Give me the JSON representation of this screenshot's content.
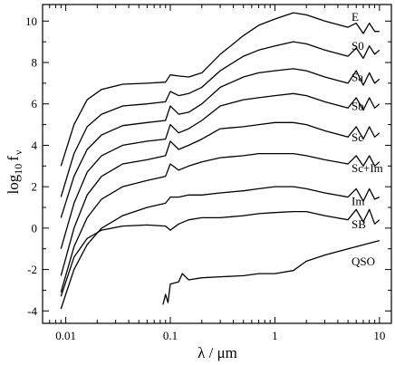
{
  "chart_data": {
    "type": "line",
    "xlabel": "λ / μm",
    "ylabel": "log",
    "ylabel_sub": "10",
    "ylabel_tail": "f",
    "ylabel_tail_sub": "ν",
    "x_scale": "log",
    "xlim": [
      0.006,
      13
    ],
    "ylim": [
      -4.6,
      10.8
    ],
    "x_ticks": [
      {
        "value": 0.01,
        "label": "0.01"
      },
      {
        "value": 0.1,
        "label": "0.1"
      },
      {
        "value": 1,
        "label": "1"
      },
      {
        "value": 10,
        "label": "10"
      }
    ],
    "y_ticks": [
      {
        "value": -4,
        "label": "-4"
      },
      {
        "value": -2,
        "label": "-2"
      },
      {
        "value": 0,
        "label": "0"
      },
      {
        "value": 2,
        "label": "2"
      },
      {
        "value": 4,
        "label": "4"
      },
      {
        "value": 6,
        "label": "6"
      },
      {
        "value": 8,
        "label": "8"
      },
      {
        "value": 10,
        "label": "10"
      }
    ],
    "series": [
      {
        "name": "E",
        "label_y": 10.2,
        "points": [
          [
            0.009,
            3.0
          ],
          [
            0.012,
            5.0
          ],
          [
            0.016,
            6.2
          ],
          [
            0.022,
            6.7
          ],
          [
            0.035,
            6.95
          ],
          [
            0.06,
            7.0
          ],
          [
            0.09,
            7.05
          ],
          [
            0.1,
            7.4
          ],
          [
            0.12,
            7.35
          ],
          [
            0.15,
            7.3
          ],
          [
            0.2,
            7.5
          ],
          [
            0.3,
            8.4
          ],
          [
            0.4,
            8.9
          ],
          [
            0.5,
            9.3
          ],
          [
            0.7,
            9.8
          ],
          [
            1,
            10.1
          ],
          [
            1.5,
            10.4
          ],
          [
            2,
            10.3
          ],
          [
            3,
            10.0
          ],
          [
            5,
            9.7
          ],
          [
            6,
            9.9
          ],
          [
            7,
            9.4
          ],
          [
            8,
            9.9
          ],
          [
            9,
            9.5
          ],
          [
            10,
            9.5
          ]
        ]
      },
      {
        "name": "S0",
        "label_y": 8.8,
        "points": [
          [
            0.009,
            1.5
          ],
          [
            0.012,
            3.6
          ],
          [
            0.016,
            4.9
          ],
          [
            0.022,
            5.5
          ],
          [
            0.035,
            5.9
          ],
          [
            0.06,
            6.0
          ],
          [
            0.09,
            6.1
          ],
          [
            0.1,
            6.6
          ],
          [
            0.12,
            6.4
          ],
          [
            0.15,
            6.5
          ],
          [
            0.2,
            6.8
          ],
          [
            0.3,
            7.6
          ],
          [
            0.5,
            8.3
          ],
          [
            0.7,
            8.6
          ],
          [
            1,
            8.8
          ],
          [
            1.5,
            9.0
          ],
          [
            2,
            8.9
          ],
          [
            3,
            8.6
          ],
          [
            5,
            8.3
          ],
          [
            6,
            8.7
          ],
          [
            7,
            8.2
          ],
          [
            8,
            8.8
          ],
          [
            9,
            8.4
          ],
          [
            10,
            8.6
          ]
        ]
      },
      {
        "name": "Sa",
        "label_y": 7.3,
        "points": [
          [
            0.009,
            0.5
          ],
          [
            0.012,
            2.5
          ],
          [
            0.016,
            3.8
          ],
          [
            0.022,
            4.5
          ],
          [
            0.035,
            4.95
          ],
          [
            0.06,
            5.1
          ],
          [
            0.09,
            5.2
          ],
          [
            0.1,
            5.9
          ],
          [
            0.12,
            5.5
          ],
          [
            0.15,
            5.6
          ],
          [
            0.2,
            6.0
          ],
          [
            0.3,
            6.8
          ],
          [
            0.5,
            7.3
          ],
          [
            0.7,
            7.5
          ],
          [
            1,
            7.6
          ],
          [
            1.5,
            7.7
          ],
          [
            2,
            7.6
          ],
          [
            3,
            7.3
          ],
          [
            5,
            7.0
          ],
          [
            6,
            7.6
          ],
          [
            7,
            6.9
          ],
          [
            8,
            7.5
          ],
          [
            9,
            7.0
          ],
          [
            10,
            7.2
          ]
        ]
      },
      {
        "name": "Sb",
        "label_y": 5.9,
        "points": [
          [
            0.009,
            -1.0
          ],
          [
            0.012,
            1.2
          ],
          [
            0.016,
            2.7
          ],
          [
            0.022,
            3.5
          ],
          [
            0.035,
            4.0
          ],
          [
            0.06,
            4.2
          ],
          [
            0.09,
            4.3
          ],
          [
            0.1,
            5.0
          ],
          [
            0.12,
            4.6
          ],
          [
            0.15,
            4.8
          ],
          [
            0.2,
            5.2
          ],
          [
            0.3,
            5.9
          ],
          [
            0.5,
            6.2
          ],
          [
            0.7,
            6.3
          ],
          [
            1,
            6.4
          ],
          [
            1.5,
            6.5
          ],
          [
            2,
            6.4
          ],
          [
            3,
            6.1
          ],
          [
            5,
            5.8
          ],
          [
            6,
            6.3
          ],
          [
            7,
            5.7
          ],
          [
            8,
            6.3
          ],
          [
            9,
            5.8
          ],
          [
            10,
            6.0
          ]
        ]
      },
      {
        "name": "Sc",
        "label_y": 4.4,
        "points": [
          [
            0.009,
            -2.3
          ],
          [
            0.012,
            0.0
          ],
          [
            0.016,
            1.6
          ],
          [
            0.022,
            2.5
          ],
          [
            0.035,
            3.1
          ],
          [
            0.06,
            3.3
          ],
          [
            0.09,
            3.5
          ],
          [
            0.1,
            4.2
          ],
          [
            0.12,
            3.8
          ],
          [
            0.15,
            4.0
          ],
          [
            0.2,
            4.3
          ],
          [
            0.3,
            4.8
          ],
          [
            0.5,
            4.9
          ],
          [
            0.7,
            5.0
          ],
          [
            1,
            5.1
          ],
          [
            1.5,
            5.1
          ],
          [
            2,
            5.0
          ],
          [
            3,
            4.7
          ],
          [
            5,
            4.4
          ],
          [
            6,
            4.9
          ],
          [
            7,
            4.3
          ],
          [
            8,
            4.9
          ],
          [
            9,
            4.4
          ],
          [
            10,
            4.6
          ]
        ]
      },
      {
        "name": "Sc+Im",
        "label_y": 2.9,
        "points": [
          [
            0.009,
            -3.1
          ],
          [
            0.012,
            -0.9
          ],
          [
            0.016,
            0.5
          ],
          [
            0.022,
            1.4
          ],
          [
            0.035,
            2.0
          ],
          [
            0.06,
            2.3
          ],
          [
            0.09,
            2.5
          ],
          [
            0.1,
            3.1
          ],
          [
            0.12,
            2.8
          ],
          [
            0.15,
            3.0
          ],
          [
            0.2,
            3.2
          ],
          [
            0.3,
            3.4
          ],
          [
            0.5,
            3.5
          ],
          [
            0.7,
            3.6
          ],
          [
            1,
            3.6
          ],
          [
            1.5,
            3.6
          ],
          [
            2,
            3.5
          ],
          [
            3,
            3.3
          ],
          [
            5,
            3.1
          ],
          [
            6,
            3.5
          ],
          [
            7,
            3.0
          ],
          [
            8,
            3.5
          ],
          [
            9,
            3.0
          ],
          [
            10,
            3.2
          ]
        ]
      },
      {
        "name": "Im",
        "label_y": 1.3,
        "points": [
          [
            0.009,
            -3.9
          ],
          [
            0.012,
            -2.0
          ],
          [
            0.016,
            -0.8
          ],
          [
            0.022,
            0.0
          ],
          [
            0.035,
            0.6
          ],
          [
            0.06,
            1.0
          ],
          [
            0.09,
            1.2
          ],
          [
            0.1,
            1.5
          ],
          [
            0.12,
            1.5
          ],
          [
            0.15,
            1.6
          ],
          [
            0.2,
            1.6
          ],
          [
            0.3,
            1.7
          ],
          [
            0.5,
            1.8
          ],
          [
            0.7,
            1.9
          ],
          [
            1,
            2.0
          ],
          [
            1.5,
            2.0
          ],
          [
            2,
            1.9
          ],
          [
            3,
            1.7
          ],
          [
            5,
            1.5
          ],
          [
            6,
            1.9
          ],
          [
            7,
            1.3
          ],
          [
            8,
            1.9
          ],
          [
            9,
            1.4
          ],
          [
            10,
            1.5
          ]
        ]
      },
      {
        "name": "SB",
        "label_y": 0.2,
        "points": [
          [
            0.009,
            -3.3
          ],
          [
            0.012,
            -1.4
          ],
          [
            0.016,
            -0.5
          ],
          [
            0.022,
            -0.1
          ],
          [
            0.035,
            0.1
          ],
          [
            0.06,
            0.15
          ],
          [
            0.09,
            0.1
          ],
          [
            0.1,
            -0.1
          ],
          [
            0.12,
            0.2
          ],
          [
            0.15,
            0.4
          ],
          [
            0.2,
            0.5
          ],
          [
            0.3,
            0.5
          ],
          [
            0.5,
            0.6
          ],
          [
            0.7,
            0.7
          ],
          [
            1,
            0.75
          ],
          [
            1.5,
            0.8
          ],
          [
            2,
            0.8
          ],
          [
            3,
            0.6
          ],
          [
            5,
            0.4
          ],
          [
            6,
            0.9
          ],
          [
            7,
            0.3
          ],
          [
            8,
            0.9
          ],
          [
            9,
            0.2
          ],
          [
            10,
            0.4
          ]
        ]
      },
      {
        "name": "QSO",
        "label_y": -1.6,
        "points": [
          [
            0.085,
            -3.7
          ],
          [
            0.09,
            -3.2
          ],
          [
            0.095,
            -3.6
          ],
          [
            0.1,
            -2.7
          ],
          [
            0.12,
            -2.6
          ],
          [
            0.13,
            -2.2
          ],
          [
            0.15,
            -2.5
          ],
          [
            0.2,
            -2.4
          ],
          [
            0.3,
            -2.35
          ],
          [
            0.5,
            -2.3
          ],
          [
            0.7,
            -2.2
          ],
          [
            1,
            -2.2
          ],
          [
            1.5,
            -2.05
          ],
          [
            2,
            -1.6
          ],
          [
            3,
            -1.3
          ],
          [
            5,
            -1.0
          ],
          [
            10,
            -0.6
          ]
        ]
      }
    ]
  }
}
